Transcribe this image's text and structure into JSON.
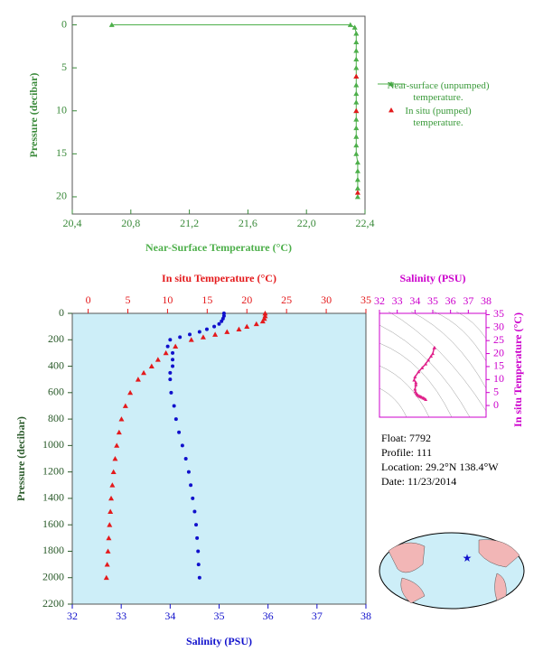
{
  "chart_data": [
    {
      "type": "line",
      "xlabel": "Near-Surface Temperature (°C)",
      "ylabel": "Pressure (decibar)",
      "xlim": [
        20.4,
        22.4
      ],
      "xticks": [
        {
          "value": 20.4,
          "label": "20,4"
        },
        {
          "value": 20.8,
          "label": "20,8"
        },
        {
          "value": 21.2,
          "label": "21,2"
        },
        {
          "value": 21.6,
          "label": "21,6"
        },
        {
          "value": 22.0,
          "label": "22,0"
        },
        {
          "value": 22.4,
          "label": "22,4"
        }
      ],
      "ylim": [
        22,
        -1
      ],
      "yticks": [
        0,
        5,
        10,
        15,
        20
      ],
      "series": [
        {
          "name": "Near-surface (unpumped) temperature.",
          "color": "#4daf4a",
          "marker": "triangle",
          "line": true,
          "values": [
            20.67,
            22.3,
            22.33,
            22.34,
            22.34,
            22.34,
            22.34,
            22.34,
            22.34,
            22.34,
            22.34,
            22.34,
            22.34,
            22.34,
            22.34,
            22.34,
            22.34,
            22.34,
            22.35,
            22.35,
            22.35,
            22.35,
            22.35
          ],
          "pressure": [
            0,
            0,
            0.3,
            1,
            2,
            3,
            4,
            5,
            6,
            7,
            8,
            9,
            10,
            11,
            12,
            13,
            14,
            15,
            16,
            17,
            18,
            19,
            20
          ]
        },
        {
          "name": "In situ (pumped) temperature.",
          "color": "#e41a1c",
          "marker": "triangle",
          "line": false,
          "values": [
            22.34,
            22.34,
            22.35
          ],
          "pressure": [
            6,
            10,
            19.5
          ]
        }
      ]
    },
    {
      "type": "profile",
      "xlabel": "Salinity (PSU)",
      "x2label": "In situ Temperature (°C)",
      "ylabel": "Pressure (decibar)",
      "xlim": [
        32,
        38
      ],
      "xticks": [
        32,
        33,
        34,
        35,
        36,
        37,
        38
      ],
      "x2lim": [
        -2,
        35
      ],
      "x2ticks": [
        0,
        5,
        10,
        15,
        20,
        25,
        30,
        35
      ],
      "ylim": [
        2200,
        0
      ],
      "yticks": [
        0,
        200,
        400,
        600,
        800,
        1000,
        1200,
        1400,
        1600,
        1800,
        2000,
        2200
      ],
      "series": [
        {
          "name": "Salinity",
          "color": "#1010cc",
          "marker": "dot",
          "axis": "x",
          "values": [
            35.1,
            35.1,
            35.08,
            35.05,
            35.0,
            34.9,
            34.75,
            34.6,
            34.4,
            34.2,
            34.0,
            33.95,
            34.05,
            34.05,
            34.05,
            34.0,
            34.0,
            34.02,
            34.08,
            34.12,
            34.18,
            34.25,
            34.32,
            34.38,
            34.42,
            34.46,
            34.5,
            34.53,
            34.55,
            34.57,
            34.58,
            34.6
          ],
          "pressure": [
            0,
            20,
            40,
            60,
            80,
            100,
            120,
            140,
            160,
            180,
            200,
            250,
            300,
            350,
            400,
            450,
            500,
            600,
            700,
            800,
            900,
            1000,
            1100,
            1200,
            1300,
            1400,
            1500,
            1600,
            1700,
            1800,
            1900,
            2000
          ]
        },
        {
          "name": "In situ Temperature",
          "color": "#e41a1c",
          "marker": "triangle",
          "axis": "x2",
          "values": [
            22.3,
            22.3,
            22.2,
            22.0,
            21.2,
            20.0,
            19.0,
            17.5,
            16.0,
            14.5,
            13.0,
            11.0,
            9.8,
            8.8,
            8.0,
            7.0,
            6.3,
            5.3,
            4.7,
            4.2,
            3.9,
            3.6,
            3.4,
            3.2,
            3.05,
            2.9,
            2.8,
            2.7,
            2.6,
            2.5,
            2.4,
            2.3
          ],
          "pressure": [
            0,
            20,
            40,
            60,
            80,
            100,
            120,
            140,
            160,
            180,
            200,
            250,
            300,
            350,
            400,
            450,
            500,
            600,
            700,
            800,
            900,
            1000,
            1100,
            1200,
            1300,
            1400,
            1500,
            1600,
            1700,
            1800,
            1900,
            2000
          ]
        }
      ]
    },
    {
      "type": "ts",
      "xlabel": "Salinity (PSU)",
      "ylabel": "In situ Temperature (°C)",
      "xlim": [
        32,
        38
      ],
      "xticks": [
        32,
        33,
        34,
        35,
        36,
        37,
        38
      ],
      "ylim": [
        -4.5,
        35.5
      ],
      "yticks": [
        0,
        5,
        10,
        15,
        20,
        25,
        30,
        35
      ],
      "color": "#e0208a",
      "x": [
        35.1,
        35.08,
        35.0,
        34.9,
        34.75,
        34.6,
        34.4,
        34.2,
        34.0,
        33.95,
        34.05,
        34.05,
        34.0,
        34.02,
        34.08,
        34.12,
        34.18,
        34.25,
        34.32,
        34.38,
        34.46,
        34.53,
        34.6
      ],
      "values": [
        22.3,
        22.2,
        20.0,
        19.0,
        17.5,
        16.0,
        14.5,
        13.0,
        11.0,
        9.8,
        8.8,
        8.0,
        6.3,
        5.3,
        4.7,
        4.2,
        3.9,
        3.6,
        3.4,
        3.2,
        2.9,
        2.7,
        2.3
      ]
    }
  ],
  "info": {
    "float": "Float:  7792",
    "profile": "Profile:  111",
    "location": "Location:  29.2°N  138.4°W",
    "date": "Date:  11/23/2014"
  }
}
